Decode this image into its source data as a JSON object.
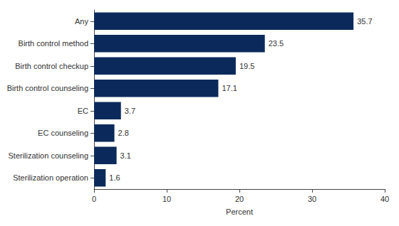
{
  "chart_data": {
    "type": "bar",
    "orientation": "horizontal",
    "categories": [
      "Any",
      "Birth control method",
      "Birth control checkup",
      "Birth control counseling",
      "EC",
      "EC counseling",
      "Sterilization counseling",
      "Sterilization operation"
    ],
    "values": [
      35.7,
      23.5,
      19.5,
      17.1,
      3.7,
      2.8,
      3.1,
      1.6
    ],
    "color": "#0b2a5b",
    "xlabel": "Percent",
    "xlim": [
      0,
      40
    ],
    "xticks": [
      0,
      10,
      20,
      30,
      40
    ],
    "grid": false,
    "data_labels": true
  }
}
